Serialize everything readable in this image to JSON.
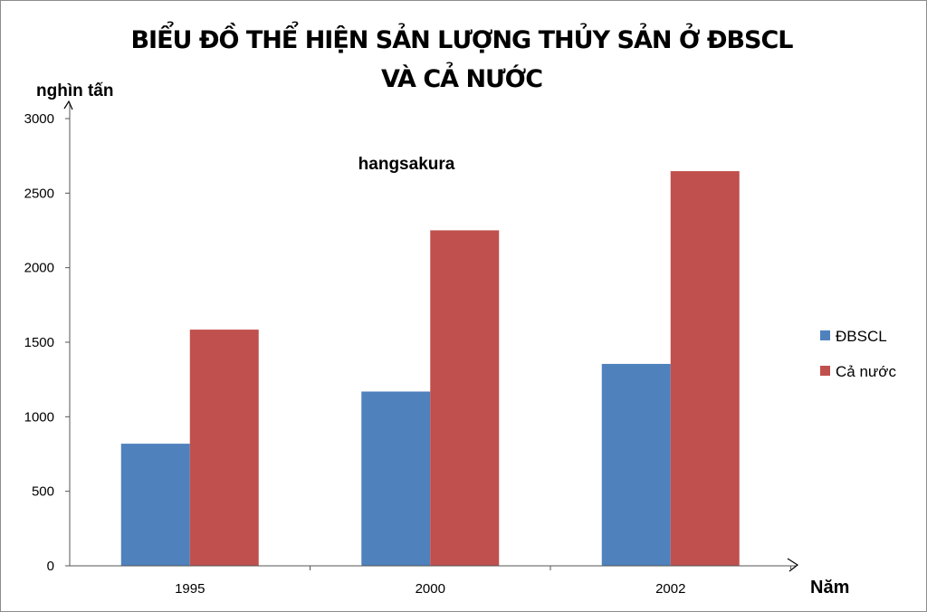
{
  "chart_data": {
    "type": "bar",
    "title": [
      "BIỂU ĐỒ THỂ HIỆN SẢN LƯỢNG THỦY SẢN Ở ĐBSCL",
      "VÀ CẢ NƯỚC"
    ],
    "watermark": "hangsakura",
    "xlabel": "Năm",
    "ylabel": "nghìn tấn",
    "categories": [
      "1995",
      "2000",
      "2002"
    ],
    "series": [
      {
        "name": "ĐBSCL",
        "color": "#4f81bd",
        "values": [
          819.2,
          1169.1,
          1354.5
        ]
      },
      {
        "name": "Cả nước",
        "color": "#c0504d",
        "values": [
          1584.4,
          2250.5,
          2647.4
        ]
      }
    ],
    "ylim": [
      0,
      3000
    ],
    "yticks": [
      0,
      500,
      1000,
      1500,
      2000,
      2500,
      3000
    ],
    "grid": false,
    "legend_position": "right"
  }
}
